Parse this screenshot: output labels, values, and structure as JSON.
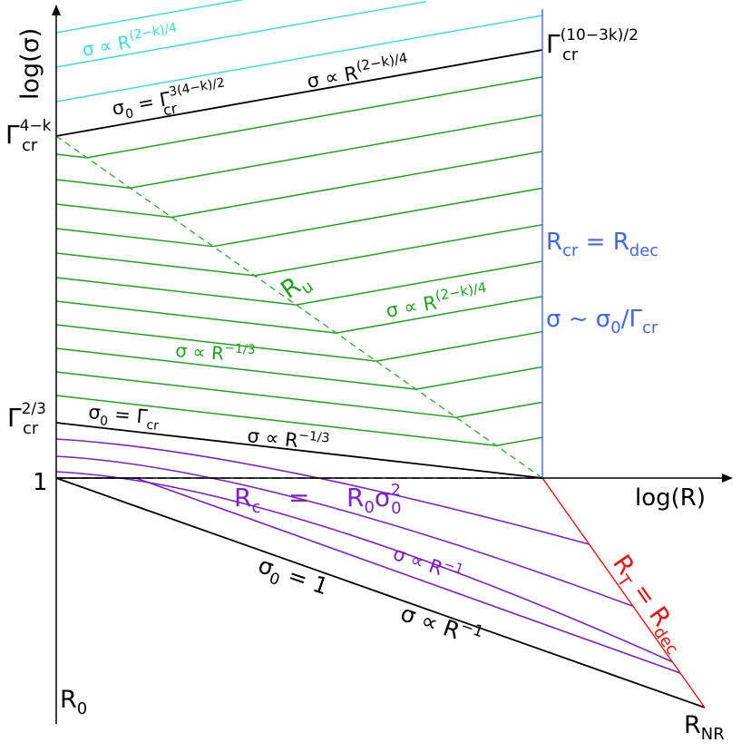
{
  "axes": {
    "y_label": "log(σ)",
    "x_label": "log(R)",
    "y_tick_one": "1",
    "x_origin_label": "R",
    "x_origin_sub": "0",
    "x_end_label": "R",
    "x_end_sub": "NR"
  },
  "y_ticks": {
    "gamma_4mk": {
      "base": "Γ",
      "sub": "cr",
      "sup": "4−k"
    },
    "gamma_2_3": {
      "base": "Γ",
      "sub": "cr",
      "sup": "2/3"
    },
    "gamma_top": {
      "base": "Γ",
      "sub": "cr",
      "sup": "(10−3k)/2"
    }
  },
  "annotations": {
    "cyan_slope": {
      "lead": "σ ∝ R",
      "sup": "(2−k)/4"
    },
    "sigma0_top": {
      "lead": "σ",
      "lead_sub": "0",
      "mid": " = Γ",
      "sub": "cr",
      "sup": "3(4−k)/2"
    },
    "black_top_slope": {
      "lead": "σ ∝ R",
      "sup": "(2−k)/4"
    },
    "r_u": {
      "base": "R",
      "sub": "u"
    },
    "green_slope_right": {
      "lead": "σ ∝ R",
      "sup": "(2−k)/4"
    },
    "green_slope_left": {
      "lead": "σ ∝ R",
      "sup": "−1/3"
    },
    "sigma0_gamma": {
      "lead": "σ",
      "lead_sub": "0",
      "mid": " = Γ",
      "sub": "cr"
    },
    "black_mid_slope": {
      "lead": "σ ∝ R",
      "sup": "−1/3"
    },
    "rc_eq": {
      "lhs": "R",
      "lhs_sub": "c",
      "eq": "=",
      "rhs": "R",
      "rhs_sub": "0",
      "rhs2": "σ",
      "rhs2_sub": "0",
      "rhs2_sup": "2"
    },
    "purple_slope": {
      "lead": "σ ∝ R",
      "sup": "−1"
    },
    "sigma0_one": {
      "lead": "σ",
      "lead_sub": "0",
      "mid": " = 1"
    },
    "black_low_slope": {
      "lead": "σ ∝ R",
      "sup": "−1"
    },
    "rcr_rdec": {
      "a": "R",
      "a_sub": "cr",
      "eq": " = ",
      "b": "R",
      "b_sub": "dec"
    },
    "sigma_sim": {
      "lead": "σ ~ σ",
      "lead_sub": "0",
      "mid": "/Γ",
      "sub": "cr"
    },
    "rt_rdec": {
      "a": "R",
      "a_sub": "T",
      "eq": " = ",
      "b": "R",
      "b_sub": "dec"
    }
  },
  "colors": {
    "axis": "#000000",
    "black_curve": "#000000",
    "cyan": "#40e0d0",
    "green": "#22a022",
    "purple": "#7b22cc",
    "blue": "#4466ee",
    "red": "#ee1111"
  }
}
